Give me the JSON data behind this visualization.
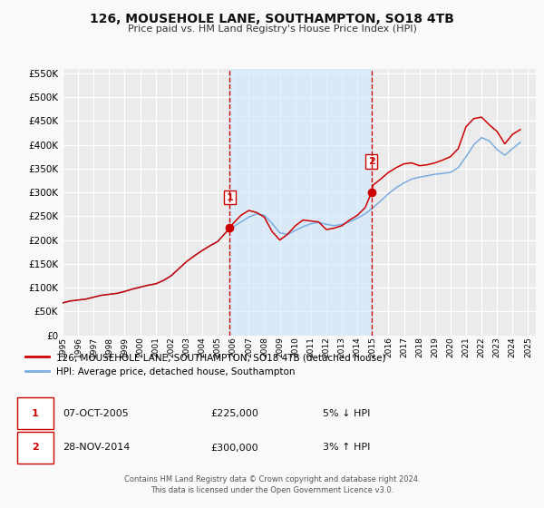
{
  "title": "126, MOUSEHOLE LANE, SOUTHAMPTON, SO18 4TB",
  "subtitle": "Price paid vs. HM Land Registry's House Price Index (HPI)",
  "title_fontsize": 10,
  "subtitle_fontsize": 8,
  "background_color": "#f9f9f9",
  "plot_bg_color": "#ebebeb",
  "grid_color": "#ffffff",
  "ylim": [
    0,
    560000
  ],
  "yticks": [
    0,
    50000,
    100000,
    150000,
    200000,
    250000,
    300000,
    350000,
    400000,
    450000,
    500000,
    550000
  ],
  "ytick_labels": [
    "£0",
    "£50K",
    "£100K",
    "£150K",
    "£200K",
    "£250K",
    "£300K",
    "£350K",
    "£400K",
    "£450K",
    "£500K",
    "£550K"
  ],
  "xlim_start": 1995,
  "xlim_end": 2025.5,
  "xtick_labels": [
    "1995",
    "1996",
    "1997",
    "1998",
    "1999",
    "2000",
    "2001",
    "2002",
    "2003",
    "2004",
    "2005",
    "2006",
    "2007",
    "2008",
    "2009",
    "2010",
    "2011",
    "2012",
    "2013",
    "2014",
    "2015",
    "2016",
    "2017",
    "2018",
    "2019",
    "2020",
    "2021",
    "2022",
    "2023",
    "2024",
    "2025"
  ],
  "sale1_x": 2005.77,
  "sale1_y": 225000,
  "sale1_label": "1",
  "sale2_x": 2014.91,
  "sale2_y": 300000,
  "sale2_label": "2",
  "vline1_x": 2005.77,
  "vline2_x": 2014.91,
  "shade_color": "#d0e8ff",
  "vline_color": "#cc0000",
  "red_line_color": "#cc0000",
  "blue_line_color": "#7aace0",
  "legend_label1": "126, MOUSEHOLE LANE, SOUTHAMPTON, SO18 4TB (detached house)",
  "legend_label2": "HPI: Average price, detached house, Southampton",
  "table_rows": [
    {
      "num": "1",
      "date": "07-OCT-2005",
      "price": "£225,000",
      "hpi": "5% ↓ HPI"
    },
    {
      "num": "2",
      "date": "28-NOV-2014",
      "price": "£300,000",
      "hpi": "3% ↑ HPI"
    }
  ],
  "footer_line1": "Contains HM Land Registry data © Crown copyright and database right 2024.",
  "footer_line2": "This data is licensed under the Open Government Licence v3.0.",
  "hpi_data": {
    "years": [
      1995.0,
      1995.5,
      1996.0,
      1996.5,
      1997.0,
      1997.5,
      1998.0,
      1998.5,
      1999.0,
      1999.5,
      2000.0,
      2000.5,
      2001.0,
      2001.5,
      2002.0,
      2002.5,
      2003.0,
      2003.5,
      2004.0,
      2004.5,
      2005.0,
      2005.5,
      2006.0,
      2006.5,
      2007.0,
      2007.5,
      2008.0,
      2008.5,
      2009.0,
      2009.5,
      2010.0,
      2010.5,
      2011.0,
      2011.5,
      2012.0,
      2012.5,
      2013.0,
      2013.5,
      2014.0,
      2014.5,
      2015.0,
      2015.5,
      2016.0,
      2016.5,
      2017.0,
      2017.5,
      2018.0,
      2018.5,
      2019.0,
      2019.5,
      2020.0,
      2020.5,
      2021.0,
      2021.5,
      2022.0,
      2022.5,
      2023.0,
      2023.5,
      2024.0,
      2024.5
    ],
    "values": [
      68000,
      72000,
      74000,
      76000,
      80000,
      84000,
      86000,
      88000,
      92000,
      97000,
      101000,
      105000,
      108000,
      115000,
      125000,
      140000,
      155000,
      167000,
      178000,
      188000,
      197000,
      215000,
      228000,
      238000,
      248000,
      255000,
      252000,
      235000,
      215000,
      212000,
      220000,
      228000,
      234000,
      237000,
      233000,
      230000,
      233000,
      238000,
      246000,
      255000,
      268000,
      282000,
      297000,
      310000,
      320000,
      328000,
      332000,
      335000,
      338000,
      340000,
      342000,
      352000,
      375000,
      400000,
      415000,
      408000,
      390000,
      378000,
      392000,
      405000
    ]
  },
  "price_data": {
    "years": [
      1995.0,
      1995.5,
      1996.0,
      1996.5,
      1997.0,
      1997.5,
      1998.0,
      1998.5,
      1999.0,
      1999.5,
      2000.0,
      2000.5,
      2001.0,
      2001.5,
      2002.0,
      2002.5,
      2003.0,
      2003.5,
      2004.0,
      2004.5,
      2005.0,
      2005.5,
      2005.77,
      2006.0,
      2006.5,
      2007.0,
      2007.5,
      2008.0,
      2008.5,
      2009.0,
      2009.5,
      2010.0,
      2010.5,
      2011.0,
      2011.5,
      2012.0,
      2012.5,
      2013.0,
      2013.5,
      2014.0,
      2014.5,
      2014.91,
      2015.0,
      2015.5,
      2016.0,
      2016.5,
      2017.0,
      2017.5,
      2018.0,
      2018.5,
      2019.0,
      2019.5,
      2020.0,
      2020.5,
      2021.0,
      2021.5,
      2022.0,
      2022.5,
      2023.0,
      2023.5,
      2024.0,
      2024.5
    ],
    "values": [
      68000,
      72000,
      74000,
      76000,
      80000,
      84000,
      86000,
      88000,
      92000,
      97000,
      101000,
      105000,
      108000,
      115000,
      125000,
      140000,
      155000,
      167000,
      178000,
      188000,
      197000,
      215000,
      225000,
      235000,
      252000,
      262000,
      258000,
      248000,
      218000,
      200000,
      212000,
      230000,
      242000,
      240000,
      238000,
      222000,
      225000,
      230000,
      242000,
      252000,
      268000,
      300000,
      315000,
      328000,
      342000,
      352000,
      360000,
      362000,
      356000,
      358000,
      362000,
      368000,
      375000,
      392000,
      438000,
      455000,
      458000,
      442000,
      428000,
      402000,
      422000,
      432000
    ]
  }
}
